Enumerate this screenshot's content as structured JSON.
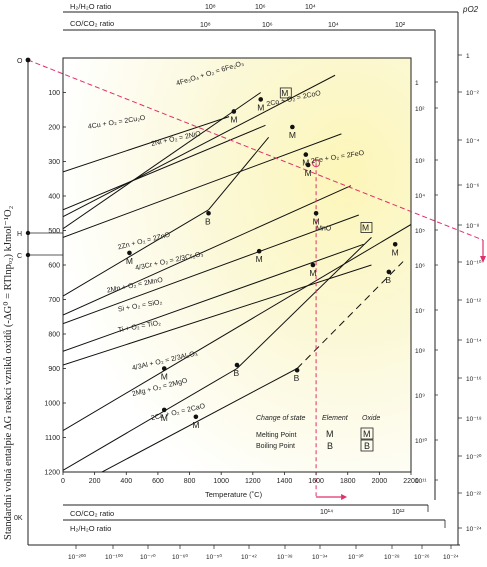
{
  "top_axes": {
    "h2_label": "H₂/H₂O ratio",
    "co_label": "CO/CO₂ ratio",
    "h2_ticks": [
      "10⁸",
      "10⁶",
      "10⁴"
    ],
    "co_ticks": [
      "10⁸",
      "10⁶",
      "10⁴",
      "10²"
    ],
    "po2_label": "pO2"
  },
  "left_axis": {
    "ylabel": "Standardní volná entalpie ΔG reakcí vzniků oxidů (-ΔG⁰ = RTlnpₒ₂) kJmol⁻¹O₂",
    "marker_O": "O",
    "marker_H": "H",
    "marker_C": "C",
    "marker_OK": "0K"
  },
  "right_scales": {
    "inner_ticks": [
      "1",
      "10²",
      "10³",
      "10⁴",
      "10⁵",
      "10⁶",
      "10⁷",
      "10⁸",
      "10⁹",
      "10¹⁰",
      "10¹¹"
    ],
    "po2_ticks": [
      "1",
      "10⁻²",
      "10⁻⁴",
      "10⁻⁶",
      "10⁻⁸",
      "10⁻¹⁰",
      "10⁻¹²",
      "10⁻¹⁴",
      "10⁻¹⁶",
      "10⁻¹⁸",
      "10⁻²⁰",
      "10⁻²²",
      "10⁻²⁴"
    ]
  },
  "bottom_axes": {
    "co_label": "CO/CO₂ ratio",
    "h2_label": "H₂/H₂O ratio",
    "co_ticks": [
      "10¹⁴",
      "10¹²"
    ],
    "bottom_ticks": [
      "10⁻²⁰⁰",
      "10⁻¹⁰⁰",
      "10⁻⁷⁰",
      "10⁻⁶⁰",
      "10⁻⁵⁰",
      "10⁻⁴²",
      "10⁻³⁸",
      "10⁻³⁴",
      "10⁻³⁰",
      "10⁻²⁸",
      "10⁻²⁶",
      "10⁻²⁴"
    ]
  },
  "chart_data": {
    "type": "line",
    "xlabel": "Temperature (˚C)",
    "xlim": [
      0,
      2200
    ],
    "ylim": [
      0,
      1200
    ],
    "x_ticks": [
      0,
      200,
      400,
      600,
      800,
      1000,
      1200,
      1400,
      1600,
      1800,
      2000,
      2200
    ],
    "y_ticks": [
      100,
      200,
      300,
      400,
      500,
      600,
      700,
      800,
      900,
      1000,
      1100,
      1200
    ],
    "y_inverted": true,
    "series": [
      {
        "name": "4Cu + O₂ = 2Cu₂O",
        "points": [
          [
            0,
            330
          ],
          [
            1050,
            170
          ]
        ]
      },
      {
        "name": "4Fe₃O₄ + O₂ = 6Fe₂O₃",
        "points": [
          [
            0,
            495
          ],
          [
            1250,
            100
          ]
        ]
      },
      {
        "name": "2Co + O₂ = 2CoO",
        "points": [
          [
            0,
            460
          ],
          [
            1720,
            50
          ]
        ]
      },
      {
        "name": "2Ni + O₂ = 2NiO",
        "points": [
          [
            0,
            440
          ],
          [
            1280,
            195
          ]
        ]
      },
      {
        "name": "2Fe + O₂ = 2FeO",
        "points": [
          [
            0,
            520
          ],
          [
            1760,
            220
          ]
        ]
      },
      {
        "name": "2Zn + O₂ = 2ZnO",
        "points": [
          [
            0,
            690
          ],
          [
            920,
            440
          ]
        ],
        "points2": [
          [
            920,
            440
          ],
          [
            1300,
            230
          ]
        ]
      },
      {
        "name": "4/3Cr + O₂ = 2/3Cr₂O₃",
        "points": [
          [
            0,
            745
          ],
          [
            1820,
            370
          ]
        ]
      },
      {
        "name": "2Mn + O₂ = 2MnO",
        "points": [
          [
            0,
            770
          ],
          [
            1870,
            455
          ]
        ]
      },
      {
        "name": "Si + O₂ = SiO₂",
        "points": [
          [
            0,
            850
          ],
          [
            1900,
            540
          ]
        ]
      },
      {
        "name": "Ti + O₂ = TiO₂",
        "points": [
          [
            0,
            890
          ],
          [
            1950,
            600
          ]
        ]
      },
      {
        "name": "4/3Al + O₂ = 2/3Al₂O₃",
        "points": [
          [
            0,
            1080
          ],
          [
            2320,
            450
          ]
        ]
      },
      {
        "name": "2Mg + O₂ = 2MgO",
        "points": [
          [
            0,
            1195
          ],
          [
            1100,
            900
          ]
        ],
        "points2": [
          [
            1100,
            900
          ],
          [
            1950,
            520
          ]
        ]
      },
      {
        "name": "2Ca + O₂ = 2CaO",
        "points": [
          [
            0,
            1260
          ],
          [
            1480,
            900
          ]
        ],
        "points2": [
          [
            1480,
            900
          ],
          [
            2150,
            590
          ]
        ]
      }
    ],
    "labels": [
      {
        "text": "4Cu + O₂ = 2Cu₂O",
        "x": 160,
        "y": 205,
        "rot": -9
      },
      {
        "text": "4Fe₃O₄ + O₂ = 6Fe₂O₃",
        "x": 720,
        "y": 80,
        "rot": -17
      },
      {
        "text": "2Co + O₂ = 2CoO",
        "x": 1290,
        "y": 140,
        "rot": -12
      },
      {
        "text": "2Ni + O₂ = 2NiO",
        "x": 560,
        "y": 255,
        "rot": -12
      },
      {
        "text": "2Fe + O₂ = 2FeO",
        "x": 1570,
        "y": 305,
        "rot": -9
      },
      {
        "text": "2Zn + O₂ = 2ZnO",
        "x": 350,
        "y": 555,
        "rot": -14
      },
      {
        "text": "4/3Cr + O₂ = 2/3Cr₂O₃",
        "x": 460,
        "y": 615,
        "rot": -12
      },
      {
        "text": "2Mn + O₂ = 2MnO",
        "x": 280,
        "y": 680,
        "rot": -11
      },
      {
        "text": "Si + O₂ = SiO₂",
        "x": 350,
        "y": 735,
        "rot": -10
      },
      {
        "text": "Ti + O₂ = TiO₂",
        "x": 350,
        "y": 795,
        "rot": -10
      },
      {
        "text": "4/3Al + O₂ = 2/3Al₂O₃",
        "x": 440,
        "y": 905,
        "rot": -13
      },
      {
        "text": "2Mg + O₂ = 2MgO",
        "x": 440,
        "y": 980,
        "rot": -14
      },
      {
        "text": "2Ca + O₂ = 2CaO",
        "x": 560,
        "y": 1050,
        "rot": -13
      },
      {
        "text": "MnO",
        "x": 1600,
        "y": 500,
        "rot": 0
      }
    ],
    "markers": [
      {
        "kind": "M",
        "x": 1080,
        "y": 155
      },
      {
        "kind": "M",
        "x": 1250,
        "y": 120
      },
      {
        "kind": "M",
        "x": 1450,
        "y": 200
      },
      {
        "kind": "M",
        "x": 1535,
        "y": 280
      },
      {
        "kind": "M",
        "x": 1550,
        "y": 310
      },
      {
        "kind": "M",
        "x": 1600,
        "y": 450
      },
      {
        "kind": "B",
        "x": 920,
        "y": 450
      },
      {
        "kind": "M",
        "x": 420,
        "y": 565
      },
      {
        "kind": "M",
        "x": 1240,
        "y": 560
      },
      {
        "kind": "M",
        "x": 1580,
        "y": 600
      },
      {
        "kind": "M",
        "x": 2100,
        "y": 540
      },
      {
        "kind": "M",
        "x": 640,
        "y": 900
      },
      {
        "kind": "B",
        "x": 1100,
        "y": 890
      },
      {
        "kind": "M",
        "x": 640,
        "y": 1020
      },
      {
        "kind": "M",
        "x": 840,
        "y": 1040
      },
      {
        "kind": "B",
        "x": 1480,
        "y": 905
      },
      {
        "kind": "B",
        "x": 2060,
        "y": 620
      }
    ],
    "boxed_markers": [
      {
        "kind": "M",
        "x": 1380,
        "y": 110
      },
      {
        "kind": "M",
        "x": 1890,
        "y": 500
      }
    ],
    "legend": {
      "title_change": "Change of state",
      "title_element": "Element",
      "title_oxide": "Oxide",
      "row1_label": "Melting Point",
      "row1_element": "M",
      "row1_oxide": "M",
      "row2_label": "Boiling Point",
      "row2_element": "B",
      "row2_oxide": "B"
    },
    "guide_temperature": 1600,
    "colors": {
      "line": "#111111",
      "guide": "#e0306a",
      "glow": "#fdf3a0"
    }
  }
}
